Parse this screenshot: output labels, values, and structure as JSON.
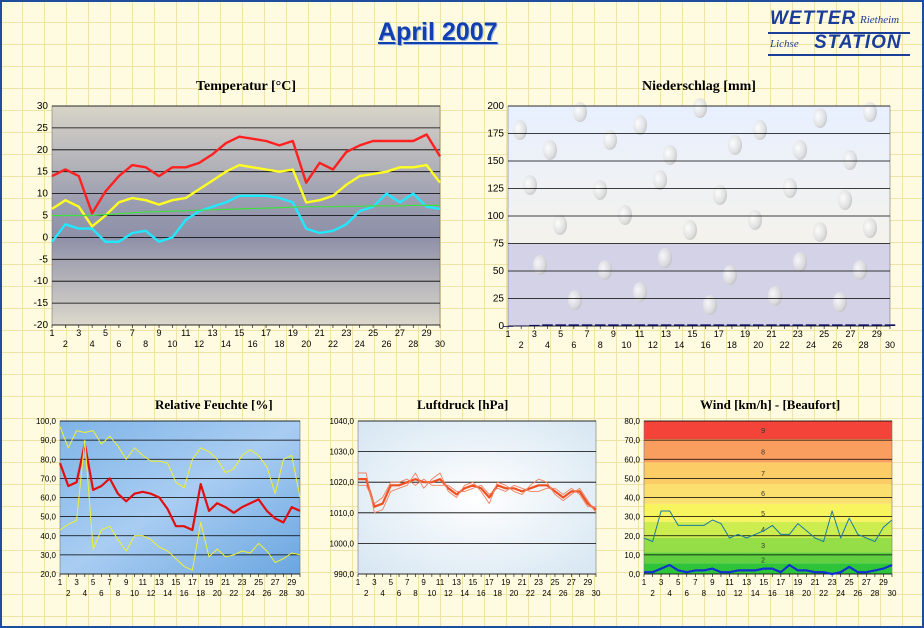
{
  "page": {
    "title": "April 2007",
    "logo": {
      "line1": "WETTER",
      "line1_small": "Rietheim",
      "line2_small": "Lichse",
      "line2": "STATION"
    }
  },
  "chart_data": [
    {
      "type": "line",
      "title": "Temperatur [°C]",
      "x": [
        1,
        2,
        3,
        4,
        5,
        6,
        7,
        8,
        9,
        10,
        11,
        12,
        13,
        14,
        15,
        16,
        17,
        18,
        19,
        20,
        21,
        22,
        23,
        24,
        25,
        26,
        27,
        28,
        29,
        30
      ],
      "ylim": [
        -20,
        30
      ],
      "yticks": [
        -20,
        -15,
        -10,
        -5,
        0,
        5,
        10,
        15,
        20,
        25,
        30
      ],
      "grid": true,
      "series": [
        {
          "color": "#ff2020",
          "values": [
            14,
            15.5,
            14,
            5.5,
            10.5,
            14,
            16.5,
            16,
            14,
            16,
            16,
            17,
            19,
            21.5,
            23,
            22.5,
            22,
            21,
            22,
            12.5,
            17,
            15.5,
            19.5,
            21,
            22,
            22,
            22,
            22,
            23.5,
            18.5
          ]
        },
        {
          "color": "#ffff20",
          "values": [
            6.5,
            8.5,
            7,
            2.5,
            5,
            8,
            9,
            8.5,
            7.5,
            8.5,
            9,
            11,
            13,
            15,
            16.5,
            16,
            15.5,
            15,
            15.5,
            8,
            8.5,
            9.5,
            12,
            14,
            14.5,
            15,
            16,
            16,
            16.5,
            12.5
          ]
        },
        {
          "color": "#20e8ff",
          "values": [
            -1,
            3,
            2,
            2,
            -1,
            -1,
            1,
            1.5,
            -1,
            0,
            4,
            6,
            7,
            8,
            9.5,
            9.5,
            9.5,
            9,
            8,
            2,
            1,
            1.5,
            3,
            6,
            7,
            10,
            8,
            10,
            7,
            6.5
          ]
        },
        {
          "color": "#40e040",
          "values": [
            5,
            5,
            5,
            5,
            5.2,
            5.4,
            5.6,
            5.8,
            5.9,
            6,
            6.1,
            6.2,
            6.3,
            6.4,
            6.5,
            6.6,
            6.7,
            6.8,
            6.9,
            7,
            7,
            7,
            7.1,
            7.1,
            7.2,
            7.2,
            7.2,
            7.3,
            7.3,
            7.3
          ]
        }
      ]
    },
    {
      "type": "bar",
      "title": "Niederschlag [mm]",
      "x": [
        1,
        2,
        3,
        4,
        5,
        6,
        7,
        8,
        9,
        10,
        11,
        12,
        13,
        14,
        15,
        16,
        17,
        18,
        19,
        20,
        21,
        22,
        23,
        24,
        25,
        26,
        27,
        28,
        29,
        30
      ],
      "values": [
        0,
        0.5,
        1,
        1.5,
        1.5,
        1.5,
        1.5,
        1.5,
        1.5,
        1.5,
        1.5,
        1.5,
        1.5,
        1.5,
        1.5,
        1.5,
        1.5,
        1.5,
        1.5,
        1.5,
        1.5,
        1.5,
        1.5,
        1.5,
        1.5,
        1.5,
        1.5,
        1.5,
        1.5,
        1.5
      ],
      "ylim": [
        0,
        200
      ],
      "yticks": [
        0,
        25,
        50,
        75,
        100,
        125,
        150,
        175,
        200
      ],
      "grid": true
    },
    {
      "type": "line",
      "title": "Relative Feuchte [%]",
      "x": [
        1,
        2,
        3,
        4,
        5,
        6,
        7,
        8,
        9,
        10,
        11,
        12,
        13,
        14,
        15,
        16,
        17,
        18,
        19,
        20,
        21,
        22,
        23,
        24,
        25,
        26,
        27,
        28,
        29,
        30
      ],
      "ylim": [
        20,
        100
      ],
      "yticks": [
        "20,0",
        "30,0",
        "40,0",
        "50,0",
        "60,0",
        "70,0",
        "80,0",
        "90,0",
        "100,0"
      ],
      "grid": true,
      "series": [
        {
          "color": "#e01010",
          "values": [
            78,
            66,
            68,
            88,
            64,
            66,
            70,
            62,
            58,
            62,
            63,
            62,
            60,
            54,
            45,
            45,
            43,
            67,
            53,
            57,
            55,
            52,
            55,
            57,
            59,
            53,
            49,
            47,
            55,
            53
          ]
        },
        {
          "color": "#f0f030",
          "values": [
            97,
            86,
            95,
            94,
            95,
            88,
            92,
            87,
            80,
            86,
            82,
            79,
            79,
            78,
            68,
            65,
            80,
            86,
            84,
            80,
            73,
            75,
            82,
            85,
            82,
            76,
            62,
            80,
            82,
            60
          ]
        },
        {
          "color": "#f0f030",
          "values": [
            43,
            46,
            48,
            90,
            33,
            43,
            45,
            38,
            32,
            40,
            40,
            38,
            34,
            32,
            28,
            24,
            22,
            47,
            29,
            33,
            29,
            30,
            32,
            31,
            36,
            32,
            26,
            28,
            31,
            30
          ]
        }
      ]
    },
    {
      "type": "line",
      "title": "Luftdruck [hPa]",
      "x": [
        1,
        2,
        3,
        4,
        5,
        6,
        7,
        8,
        9,
        10,
        11,
        12,
        13,
        14,
        15,
        16,
        17,
        18,
        19,
        20,
        21,
        22,
        23,
        24,
        25,
        26,
        27,
        28,
        29,
        30
      ],
      "ylim": [
        990,
        1040
      ],
      "yticks": [
        "990,0",
        "1000,0",
        "1010,0",
        "1020,0",
        "1030,0",
        "1040,0"
      ],
      "grid": true,
      "series": [
        {
          "color": "#f05020",
          "values": [
            1021,
            1021,
            1012,
            1013,
            1019,
            1019,
            1020,
            1021,
            1020,
            1020,
            1021,
            1018,
            1016,
            1018,
            1019,
            1018,
            1015,
            1019,
            1018,
            1018,
            1017,
            1018,
            1019,
            1019,
            1017,
            1015,
            1017,
            1017,
            1013,
            1011
          ]
        },
        {
          "color": "#f08060",
          "values": [
            1023,
            1023,
            1010,
            1011,
            1017,
            1018,
            1019,
            1023,
            1018,
            1021,
            1023,
            1017,
            1015,
            1019,
            1020,
            1017,
            1013,
            1020,
            1019,
            1017,
            1016,
            1019,
            1021,
            1020,
            1016,
            1014,
            1016,
            1018,
            1014,
            1010
          ]
        },
        {
          "color": "#f08060",
          "values": [
            1019,
            1019,
            1013,
            1015,
            1020,
            1020,
            1021,
            1019,
            1021,
            1019,
            1019,
            1019,
            1017,
            1017,
            1018,
            1019,
            1016,
            1018,
            1017,
            1019,
            1018,
            1017,
            1017,
            1018,
            1018,
            1016,
            1018,
            1016,
            1012,
            1012
          ]
        }
      ]
    },
    {
      "type": "line",
      "title": "Wind [km/h] - [Beaufort]",
      "x": [
        1,
        2,
        3,
        4,
        5,
        6,
        7,
        8,
        9,
        10,
        11,
        12,
        13,
        14,
        15,
        16,
        17,
        18,
        19,
        20,
        21,
        22,
        23,
        24,
        25,
        26,
        27,
        28,
        29,
        30
      ],
      "ylim": [
        0,
        85
      ],
      "yticks": [
        "0,0",
        "10,0",
        "20,0",
        "30,0",
        "40,0",
        "50,0",
        "60,0",
        "70,0",
        "80,0"
      ],
      "beaufort_labels": [
        "2",
        "3",
        "4",
        "5",
        "6",
        "7",
        "8",
        "9"
      ],
      "grid": true,
      "series": [
        {
          "color": "#1a7aa0",
          "values": [
            20,
            18,
            35,
            35,
            27,
            27,
            27,
            27,
            30,
            28,
            20,
            22,
            20,
            22,
            24,
            27,
            22,
            22,
            28,
            24,
            20,
            18,
            35,
            20,
            31,
            22,
            20,
            18,
            26,
            30
          ]
        },
        {
          "color": "#1030d0",
          "values": [
            1,
            1,
            3,
            5,
            2,
            1,
            2,
            2,
            3,
            1,
            1,
            2,
            2,
            2,
            3,
            3,
            1,
            5,
            2,
            2,
            1,
            1,
            0,
            1,
            4,
            1,
            1,
            2,
            3,
            5
          ]
        }
      ]
    }
  ]
}
